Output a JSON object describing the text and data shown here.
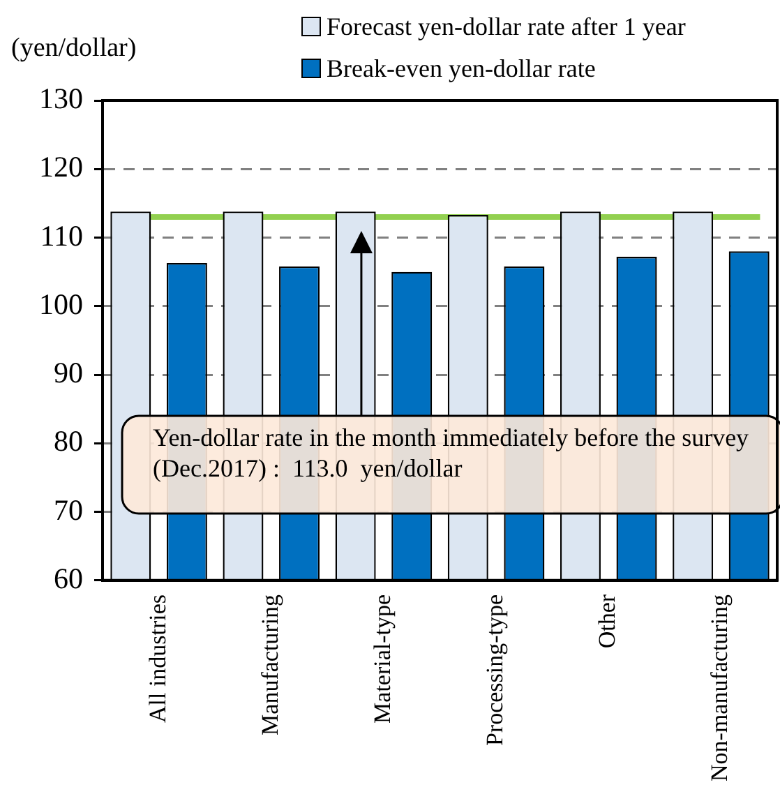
{
  "chart_data": {
    "type": "bar",
    "ylabel": "(yen/dollar)",
    "categories": [
      "All industries",
      "Manufacturing",
      "Material-type",
      "Processing-type",
      "Other",
      "Non-manufacturing"
    ],
    "series": [
      {
        "name": "Forecast yen-dollar rate after 1 year",
        "color": "#dce6f2",
        "values": [
          113.8,
          113.8,
          113.8,
          113.3,
          113.8,
          113.8
        ]
      },
      {
        "name": "Break-even yen-dollar rate",
        "color": "#0070c0",
        "values": [
          106.3,
          105.8,
          105.0,
          105.8,
          107.2,
          108.0
        ]
      }
    ],
    "ylim": [
      60,
      130
    ],
    "yticks": [
      60,
      70,
      80,
      90,
      100,
      110,
      120,
      130
    ],
    "grid": "y",
    "legend": "top right",
    "ref_lines": [
      {
        "axis": "y",
        "value": 113.0,
        "color": "#92d050"
      }
    ],
    "annotations": [
      "Yen-dollar rate in the month immediately before the survey (Dec.2017) :  113.0  yen/dollar"
    ]
  }
}
